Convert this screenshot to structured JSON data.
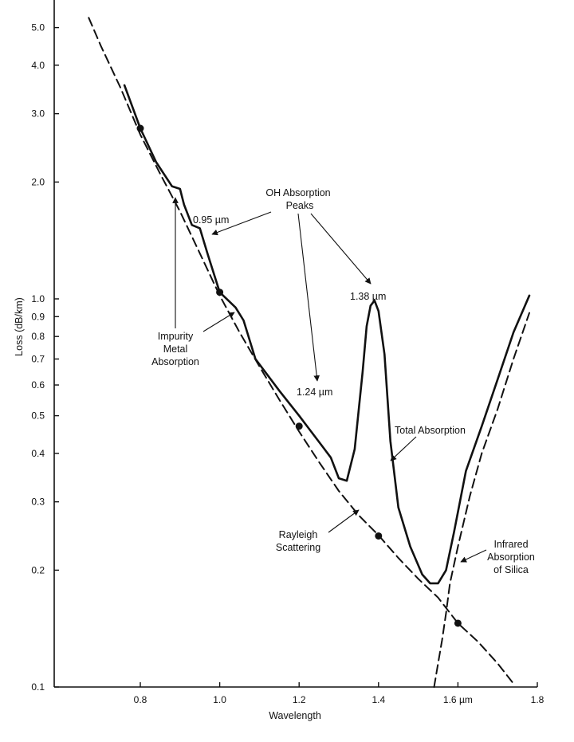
{
  "chart_data": {
    "type": "line",
    "title": "",
    "xlabel": "Wavelength",
    "ylabel": "Loss (dB/km)",
    "xlim": [
      0.6,
      1.8
    ],
    "ylim": [
      0.1,
      6.0
    ],
    "y_scale": "log",
    "grid": false,
    "x_ticks": [
      "0.8",
      "1.0",
      "1.2",
      "1.4",
      "1.6 µm",
      "1.8"
    ],
    "y_ticks": [
      "0.1",
      "0.2",
      "0.3",
      "0.4",
      "0.5",
      "0.6",
      "0.7",
      "0.8",
      "0.9",
      "1.0",
      "2.0",
      "3.0",
      "4.0",
      "5.0"
    ],
    "series": [
      {
        "style": "solid",
        "x": [
          0.76,
          0.8,
          0.84,
          0.88,
          0.9,
          0.91,
          0.93,
          0.95,
          0.97,
          1.0,
          1.04,
          1.06,
          1.09,
          1.15,
          1.2,
          1.26,
          1.28,
          1.3,
          1.32,
          1.34,
          1.36,
          1.37,
          1.38,
          1.39,
          1.4,
          1.415,
          1.43,
          1.45,
          1.48,
          1.51,
          1.53,
          1.55,
          1.57,
          1.59,
          1.62,
          1.66,
          1.7,
          1.74,
          1.78
        ],
        "y": [
          3.55,
          2.75,
          2.25,
          1.95,
          1.92,
          1.75,
          1.55,
          1.52,
          1.3,
          1.04,
          0.95,
          0.88,
          0.7,
          0.58,
          0.5,
          0.415,
          0.39,
          0.345,
          0.34,
          0.41,
          0.65,
          0.85,
          0.96,
          0.99,
          0.93,
          0.72,
          0.43,
          0.29,
          0.23,
          0.195,
          0.185,
          0.185,
          0.2,
          0.25,
          0.36,
          0.47,
          0.62,
          0.82,
          1.02
        ]
      },
      {
        "style": "dashed",
        "x": [
          0.67,
          0.7,
          0.75,
          0.8,
          0.85,
          0.9,
          0.95,
          1.0,
          1.05,
          1.1,
          1.15,
          1.2,
          1.25,
          1.3,
          1.35,
          1.4,
          1.45,
          1.5,
          1.55,
          1.6,
          1.65,
          1.7,
          1.74
        ],
        "y": [
          5.3,
          4.5,
          3.5,
          2.65,
          2.1,
          1.68,
          1.31,
          1.02,
          0.82,
          0.67,
          0.55,
          0.455,
          0.38,
          0.32,
          0.277,
          0.246,
          0.215,
          0.19,
          0.17,
          0.146,
          0.131,
          0.115,
          0.102
        ]
      },
      {
        "style": "dashed",
        "x": [
          1.54,
          1.55,
          1.56,
          1.57,
          1.58,
          1.6,
          1.63,
          1.66,
          1.7,
          1.74,
          1.78
        ],
        "y": [
          0.1,
          0.115,
          0.132,
          0.155,
          0.185,
          0.23,
          0.31,
          0.4,
          0.52,
          0.7,
          0.92
        ]
      }
    ],
    "markers": {
      "x": [
        0.8,
        1.0,
        1.2,
        1.4,
        1.6
      ],
      "y": [
        2.75,
        1.04,
        0.47,
        0.245,
        0.146
      ]
    },
    "annotations": {
      "oh_line1": "OH Absorption",
      "oh_line2": "Peaks",
      "peak_095": "0.95 µm",
      "peak_138": "1.38 µm",
      "peak_124": "1.24 µm",
      "impurity_line1": "Impurity",
      "impurity_line2": "Metal",
      "impurity_line3": "Absorption",
      "total": "Total Absorption",
      "rayleigh_line1": "Rayleigh",
      "rayleigh_line2": "Scattering",
      "infrared_line1": "Infrared",
      "infrared_line2": "Absorption",
      "infrared_line3": "of Silica"
    }
  }
}
